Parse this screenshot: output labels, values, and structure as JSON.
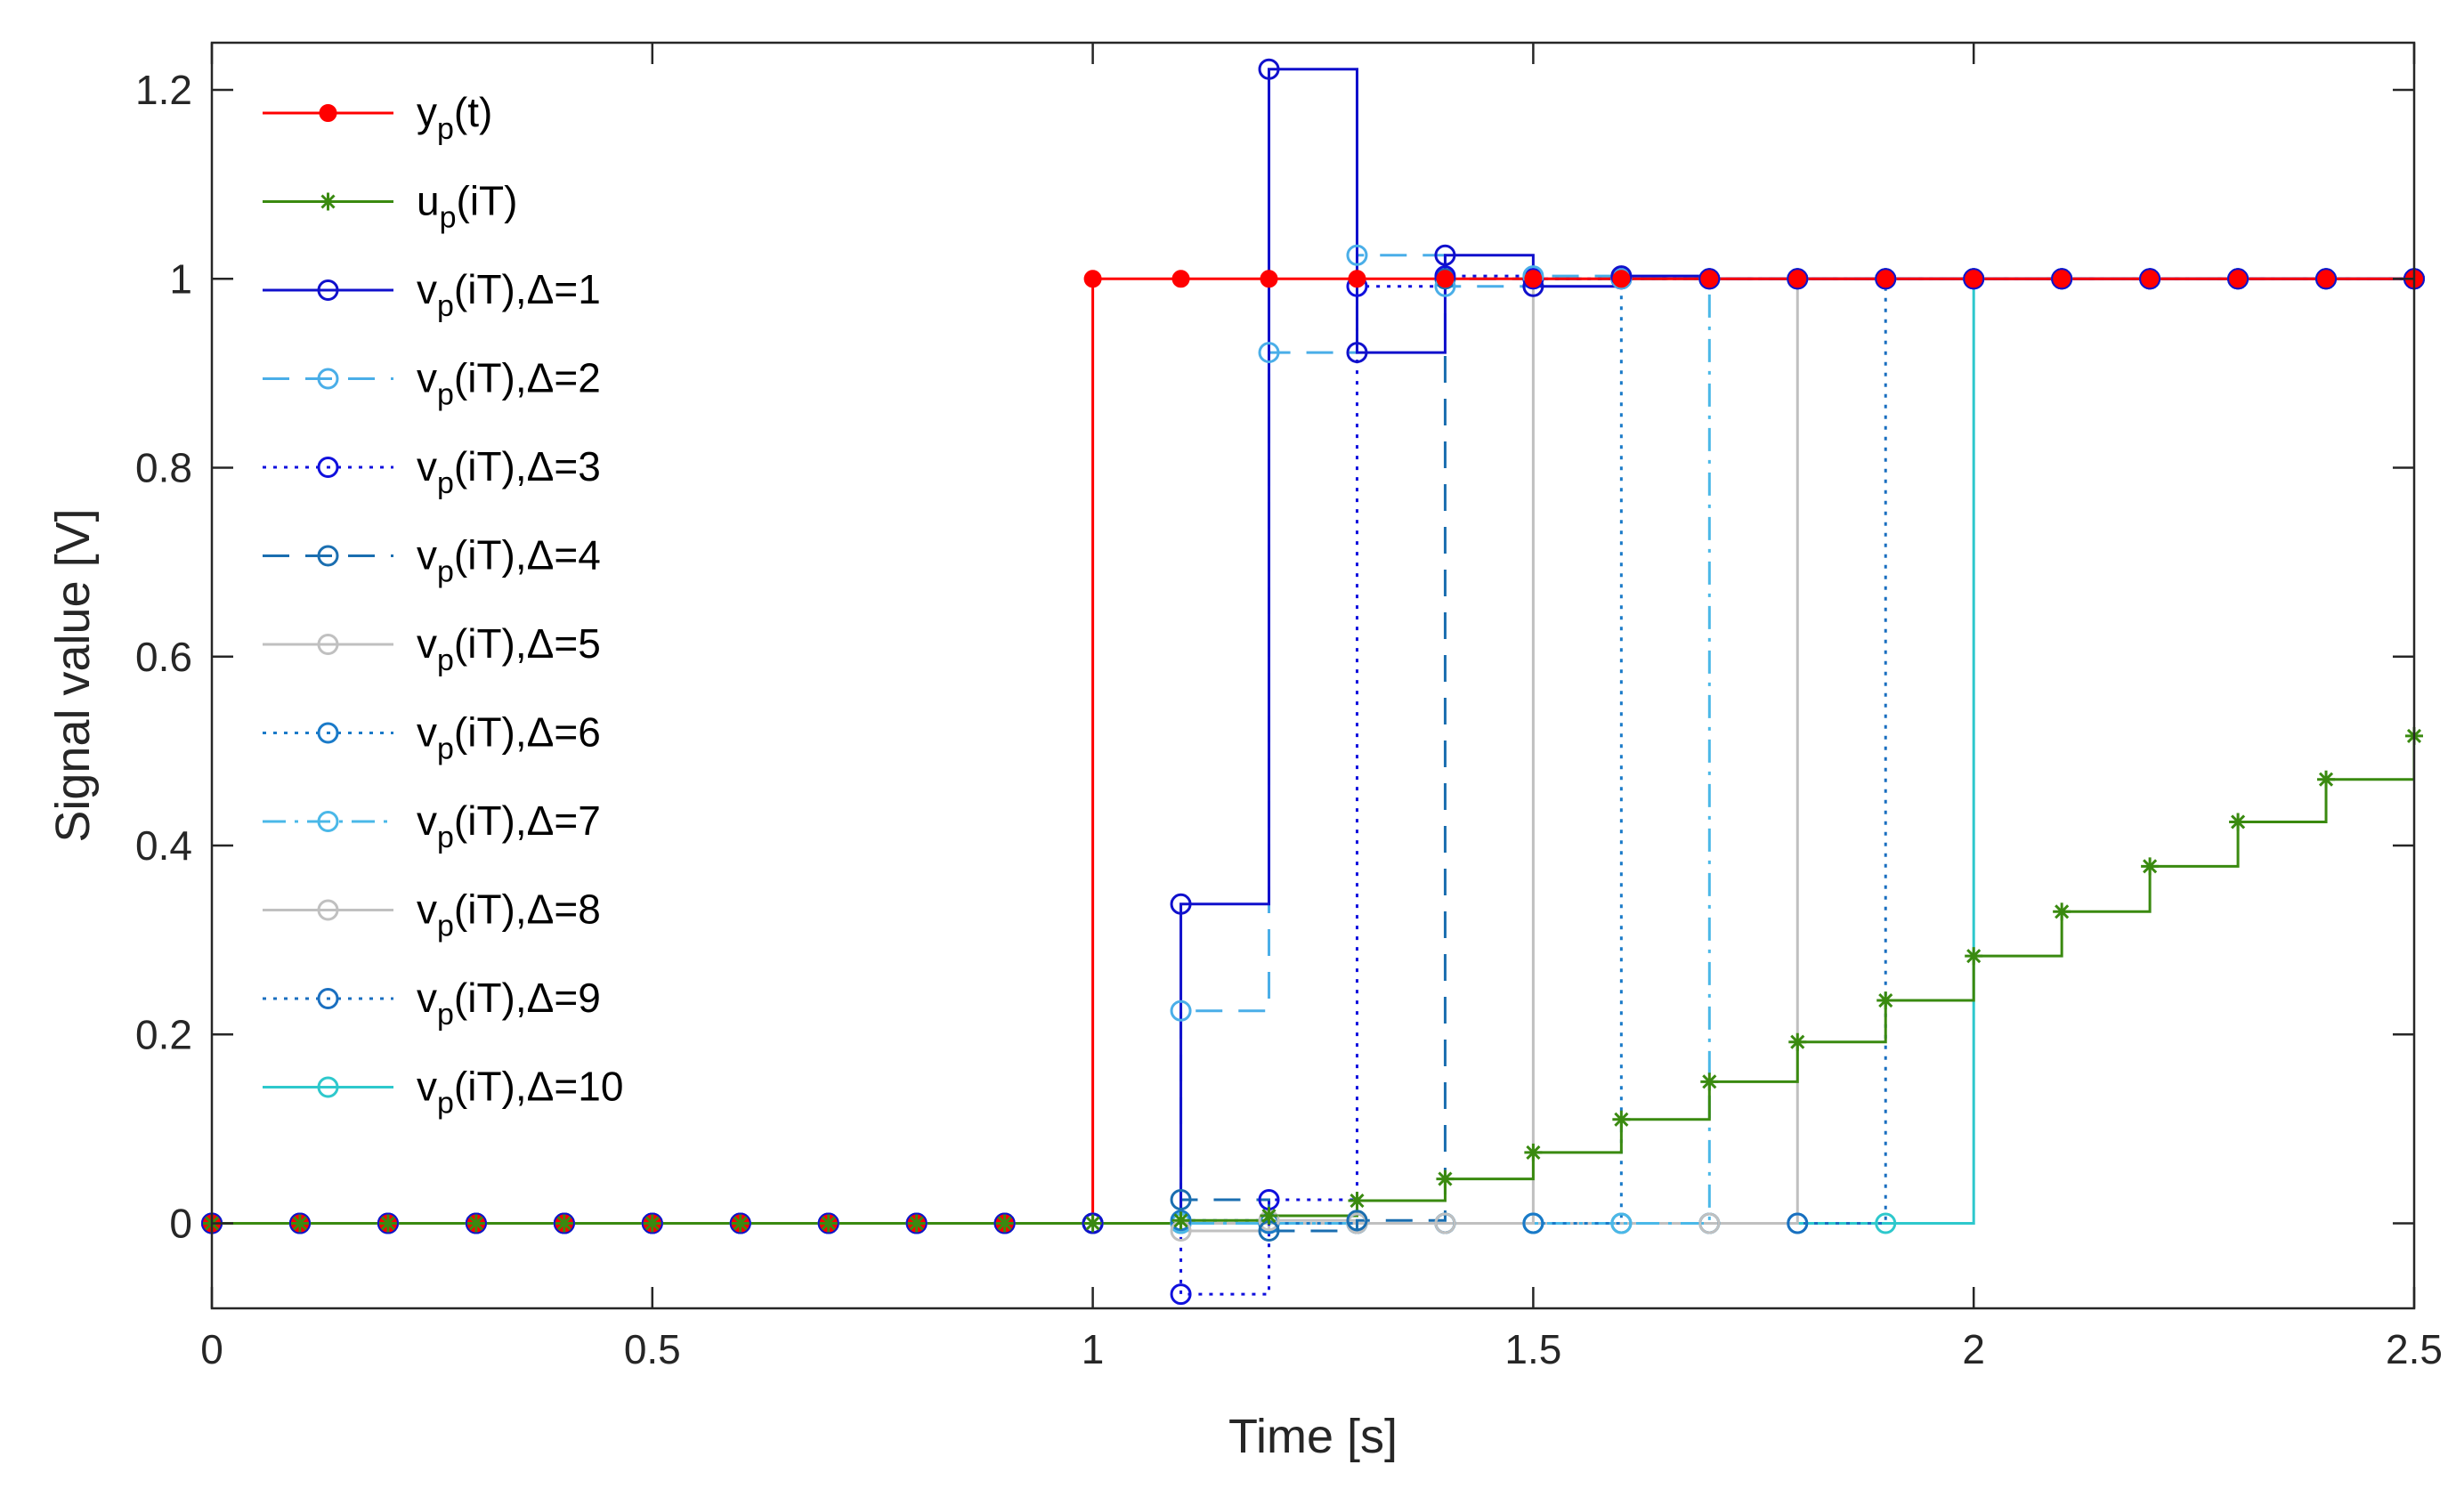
{
  "chart_data": {
    "type": "line",
    "title": "",
    "xlabel": "Time [s]",
    "ylabel": "Signal value [V]",
    "xlim": [
      0,
      2.5
    ],
    "ylim": [
      -0.09,
      1.25
    ],
    "x_ticks": [
      0,
      0.5,
      1,
      1.5,
      2,
      2.5
    ],
    "x_tick_labels": [
      "0",
      "0.5",
      "1",
      "1.5",
      "2",
      "2.5"
    ],
    "y_ticks": [
      0,
      0.2,
      0.4,
      0.6,
      0.8,
      1,
      1.2
    ],
    "y_tick_labels": [
      "0",
      "0.2",
      "0.4",
      "0.6",
      "0.8",
      "1",
      "1.2"
    ],
    "grid": false,
    "legend_position": "top-left",
    "x": [
      0,
      0.1,
      0.2,
      0.3,
      0.4,
      0.5,
      0.6,
      0.7,
      0.8,
      0.9,
      1.0,
      1.1,
      1.2,
      1.3,
      1.4,
      1.5,
      1.6,
      1.7,
      1.8,
      1.9,
      2.0,
      2.1,
      2.2,
      2.3,
      2.4,
      2.5
    ],
    "series": [
      {
        "name": "y_p(t)",
        "base": "y",
        "sub": "p",
        "suffix": "(t)",
        "color": "#ff0000",
        "dash": "",
        "marker": "dot",
        "stairs": true,
        "values": [
          0,
          0,
          0,
          0,
          0,
          0,
          0,
          0,
          0,
          0,
          1,
          1,
          1,
          1,
          1,
          1,
          1,
          1,
          1,
          1,
          1,
          1,
          1,
          1,
          1,
          1
        ]
      },
      {
        "name": "u_p(iT)",
        "base": "u",
        "sub": "p",
        "suffix": "(iT)",
        "color": "#3a8a10",
        "dash": "",
        "marker": "star",
        "stairs": true,
        "values": [
          0,
          0,
          0,
          0,
          0,
          0,
          0,
          0,
          0,
          0,
          0,
          0.003,
          0.008,
          0.024,
          0.047,
          0.075,
          0.11,
          0.15,
          0.192,
          0.236,
          0.283,
          0.33,
          0.378,
          0.425,
          0.47,
          0.516
        ]
      },
      {
        "name": "v_p(iT),Δ=1",
        "base": "v",
        "sub": "p",
        "suffix": "(iT),Δ=1",
        "color": "#1010cc",
        "dash": "",
        "marker": "circle",
        "stairs": true,
        "values": [
          0,
          0,
          0,
          0,
          0,
          0,
          0,
          0,
          0,
          0,
          0,
          0.338,
          1.222,
          0.922,
          1.025,
          0.992,
          1.003,
          1,
          1,
          1,
          1,
          1,
          1,
          1,
          1,
          1
        ]
      },
      {
        "name": "v_p(iT),Δ=2",
        "base": "v",
        "sub": "p",
        "suffix": "(iT),Δ=2",
        "color": "#4aaee8",
        "dash": "30 18",
        "marker": "circle",
        "stairs": true,
        "values": [
          0,
          0,
          0,
          0,
          0,
          0,
          0,
          0,
          0,
          0,
          0,
          0.225,
          0.922,
          1.025,
          0.992,
          1.003,
          1,
          1,
          1,
          1,
          1,
          1,
          1,
          1,
          1,
          1
        ]
      },
      {
        "name": "v_p(iT),Δ=3",
        "base": "v",
        "sub": "p",
        "suffix": "(iT),Δ=3",
        "color": "#1010dd",
        "dash": "4 8",
        "marker": "circle",
        "stairs": true,
        "values": [
          0,
          0,
          0,
          0,
          0,
          0,
          0,
          0,
          0,
          0,
          0,
          -0.075,
          0.025,
          0.992,
          1.003,
          1,
          1,
          1,
          1,
          1,
          1,
          1,
          1,
          1,
          1,
          1
        ]
      },
      {
        "name": "v_p(iT),Δ=4",
        "base": "v",
        "sub": "p",
        "suffix": "(iT),Δ=4",
        "color": "#1a6eb0",
        "dash": "30 18",
        "marker": "circle",
        "stairs": true,
        "values": [
          0,
          0,
          0,
          0,
          0,
          0,
          0,
          0,
          0,
          0,
          0,
          0.025,
          -0.008,
          0.003,
          1,
          1,
          1,
          1,
          1,
          1,
          1,
          1,
          1,
          1,
          1,
          1
        ]
      },
      {
        "name": "v_p(iT),Δ=5",
        "base": "v",
        "sub": "p",
        "suffix": "(iT),Δ=5",
        "color": "#c0c0c0",
        "dash": "",
        "marker": "circle",
        "stairs": true,
        "values": [
          0,
          0,
          0,
          0,
          0,
          0,
          0,
          0,
          0,
          0,
          0,
          -0.008,
          0.003,
          0,
          0,
          1,
          1,
          1,
          1,
          1,
          1,
          1,
          1,
          1,
          1,
          1
        ]
      },
      {
        "name": "v_p(iT),Δ=6",
        "base": "v",
        "sub": "p",
        "suffix": "(iT),Δ=6",
        "color": "#1a7ac8",
        "dash": "4 8",
        "marker": "circle",
        "stairs": true,
        "values": [
          0,
          0,
          0,
          0,
          0,
          0,
          0,
          0,
          0,
          0,
          0,
          0.003,
          0,
          0,
          0,
          0,
          1,
          1,
          1,
          1,
          1,
          1,
          1,
          1,
          1,
          1
        ]
      },
      {
        "name": "v_p(iT),Δ=7",
        "base": "v",
        "sub": "p",
        "suffix": "(iT),Δ=7",
        "color": "#4ab8e8",
        "dash": "26 10 4 10",
        "marker": "circle",
        "stairs": true,
        "values": [
          0,
          0,
          0,
          0,
          0,
          0,
          0,
          0,
          0,
          0,
          0,
          0,
          0,
          0,
          0,
          0,
          0,
          1,
          1,
          1,
          1,
          1,
          1,
          1,
          1,
          1
        ]
      },
      {
        "name": "v_p(iT),Δ=8",
        "base": "v",
        "sub": "p",
        "suffix": "(iT),Δ=8",
        "color": "#c0c0c0",
        "dash": "",
        "marker": "circle",
        "stairs": true,
        "values": [
          0,
          0,
          0,
          0,
          0,
          0,
          0,
          0,
          0,
          0,
          0,
          0,
          0,
          0,
          0,
          0,
          0,
          0,
          1,
          1,
          1,
          1,
          1,
          1,
          1,
          1
        ]
      },
      {
        "name": "v_p(iT),Δ=9",
        "base": "v",
        "sub": "p",
        "suffix": "(iT),Δ=9",
        "color": "#1a6fc0",
        "dash": "4 8",
        "marker": "circle",
        "stairs": true,
        "values": [
          0,
          0,
          0,
          0,
          0,
          0,
          0,
          0,
          0,
          0,
          0,
          0,
          0,
          0,
          0,
          0,
          0,
          0,
          0,
          1,
          1,
          1,
          1,
          1,
          1,
          1
        ]
      },
      {
        "name": "v_p(iT),Δ=10",
        "base": "v",
        "sub": "p",
        "suffix": "(iT),Δ=10",
        "color": "#2ec8cc",
        "dash": "",
        "marker": "circle",
        "stairs": true,
        "values": [
          0,
          0,
          0,
          0,
          0,
          0,
          0,
          0,
          0,
          0,
          0,
          0,
          0,
          0,
          0,
          0,
          0,
          0,
          0,
          0,
          1,
          1,
          1,
          1,
          1,
          1
        ]
      }
    ]
  }
}
